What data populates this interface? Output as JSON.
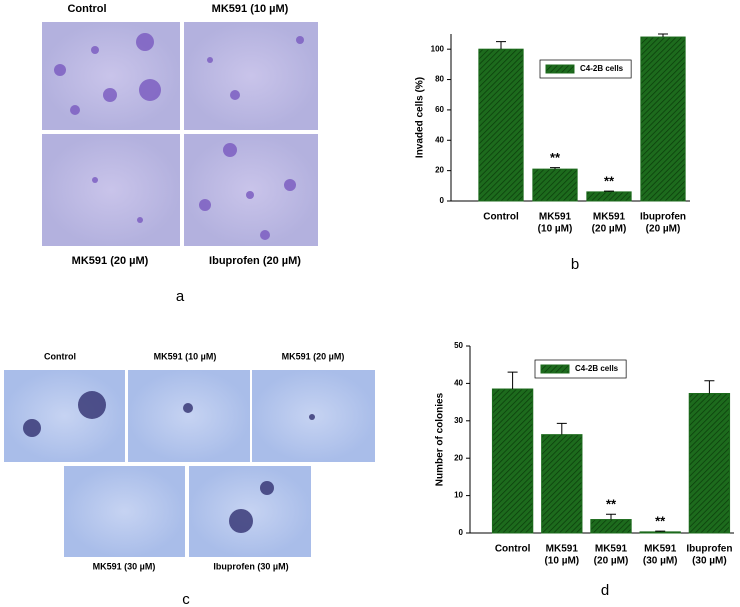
{
  "panels": {
    "a": {
      "letter": "a",
      "labels_top": [
        "Control",
        "MK591 (10 µM)"
      ],
      "labels_bottom": [
        "MK591 (20 µM)",
        "Ibuprofen (20 µM)"
      ]
    },
    "c": {
      "letter": "c",
      "labels_top": [
        "Control",
        "MK591 (10 µM)",
        "MK591 (20 µM)"
      ],
      "labels_bottom": [
        "MK591 (30 µM)",
        "Ibuprofen (30 µM)"
      ]
    }
  },
  "chart_data": [
    {
      "type": "bar",
      "letter": "b",
      "ylabel": "Invaded cells (%)",
      "categories": [
        [
          "Control"
        ],
        [
          "MK591",
          "(10 µM)"
        ],
        [
          "MK591",
          "(20 µM)"
        ],
        [
          "Ibuprofen",
          "(20 µM)"
        ]
      ],
      "series": [
        {
          "name": "C4-2B cells",
          "color": "#1d6b1d",
          "values": [
            100,
            21,
            6,
            108
          ],
          "errors": [
            5,
            1,
            0.5,
            2
          ]
        }
      ],
      "significance": [
        null,
        "**",
        "**",
        null
      ],
      "ylim": [
        0,
        110
      ],
      "yticks": [
        0,
        20,
        40,
        60,
        80,
        100
      ],
      "legend": "top"
    },
    {
      "type": "bar",
      "letter": "d",
      "ylabel": "Number of colonies",
      "categories": [
        [
          "Control"
        ],
        [
          "MK591",
          "(10 µM)"
        ],
        [
          "MK591",
          "(20 µM)"
        ],
        [
          "MK591",
          "(30 µM)"
        ],
        [
          "Ibuprofen",
          "(30 µM)"
        ]
      ],
      "series": [
        {
          "name": "C4-2B cells",
          "color": "#1d6b1d",
          "values": [
            38.5,
            26.3,
            3.6,
            0.3,
            37.3
          ],
          "errors": [
            4.5,
            3,
            1.4,
            0.2,
            3.4
          ]
        }
      ],
      "significance": [
        null,
        null,
        "**",
        "**",
        null
      ],
      "ylim": [
        0,
        50
      ],
      "yticks": [
        0,
        10,
        20,
        30,
        40,
        50
      ],
      "legend": "top"
    }
  ]
}
